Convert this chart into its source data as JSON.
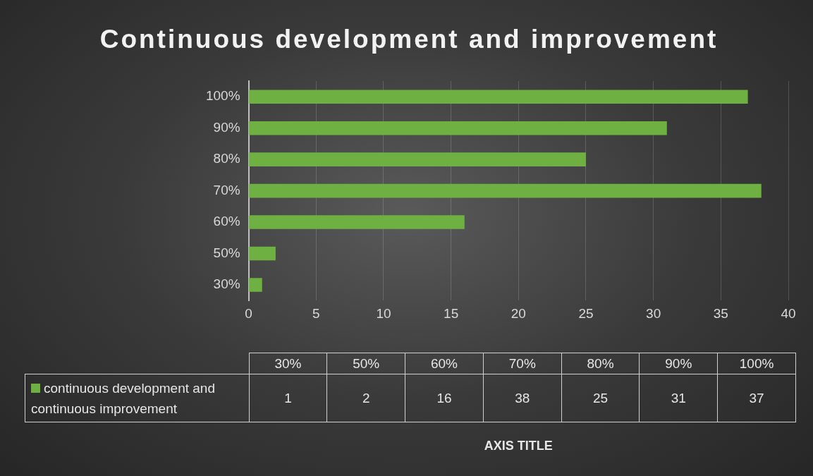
{
  "chart_data": {
    "type": "bar",
    "orientation": "horizontal",
    "title": "Continuous development and improvement",
    "categories": [
      "100%",
      "90%",
      "80%",
      "70%",
      "60%",
      "50%",
      "30%"
    ],
    "series": [
      {
        "name": "continuous development and continuous improvement",
        "color": "#6fb043",
        "values": [
          37,
          31,
          25,
          38,
          16,
          2,
          1
        ]
      }
    ],
    "xlim": [
      0,
      40
    ],
    "xticks": [
      0,
      5,
      10,
      15,
      20,
      25,
      30,
      35,
      40
    ],
    "grid": "x",
    "legend": "bottom",
    "annotations": [
      "1",
      "2",
      "16",
      "38",
      "25",
      "31",
      "37",
      "AXIS TITLE"
    ]
  }
}
